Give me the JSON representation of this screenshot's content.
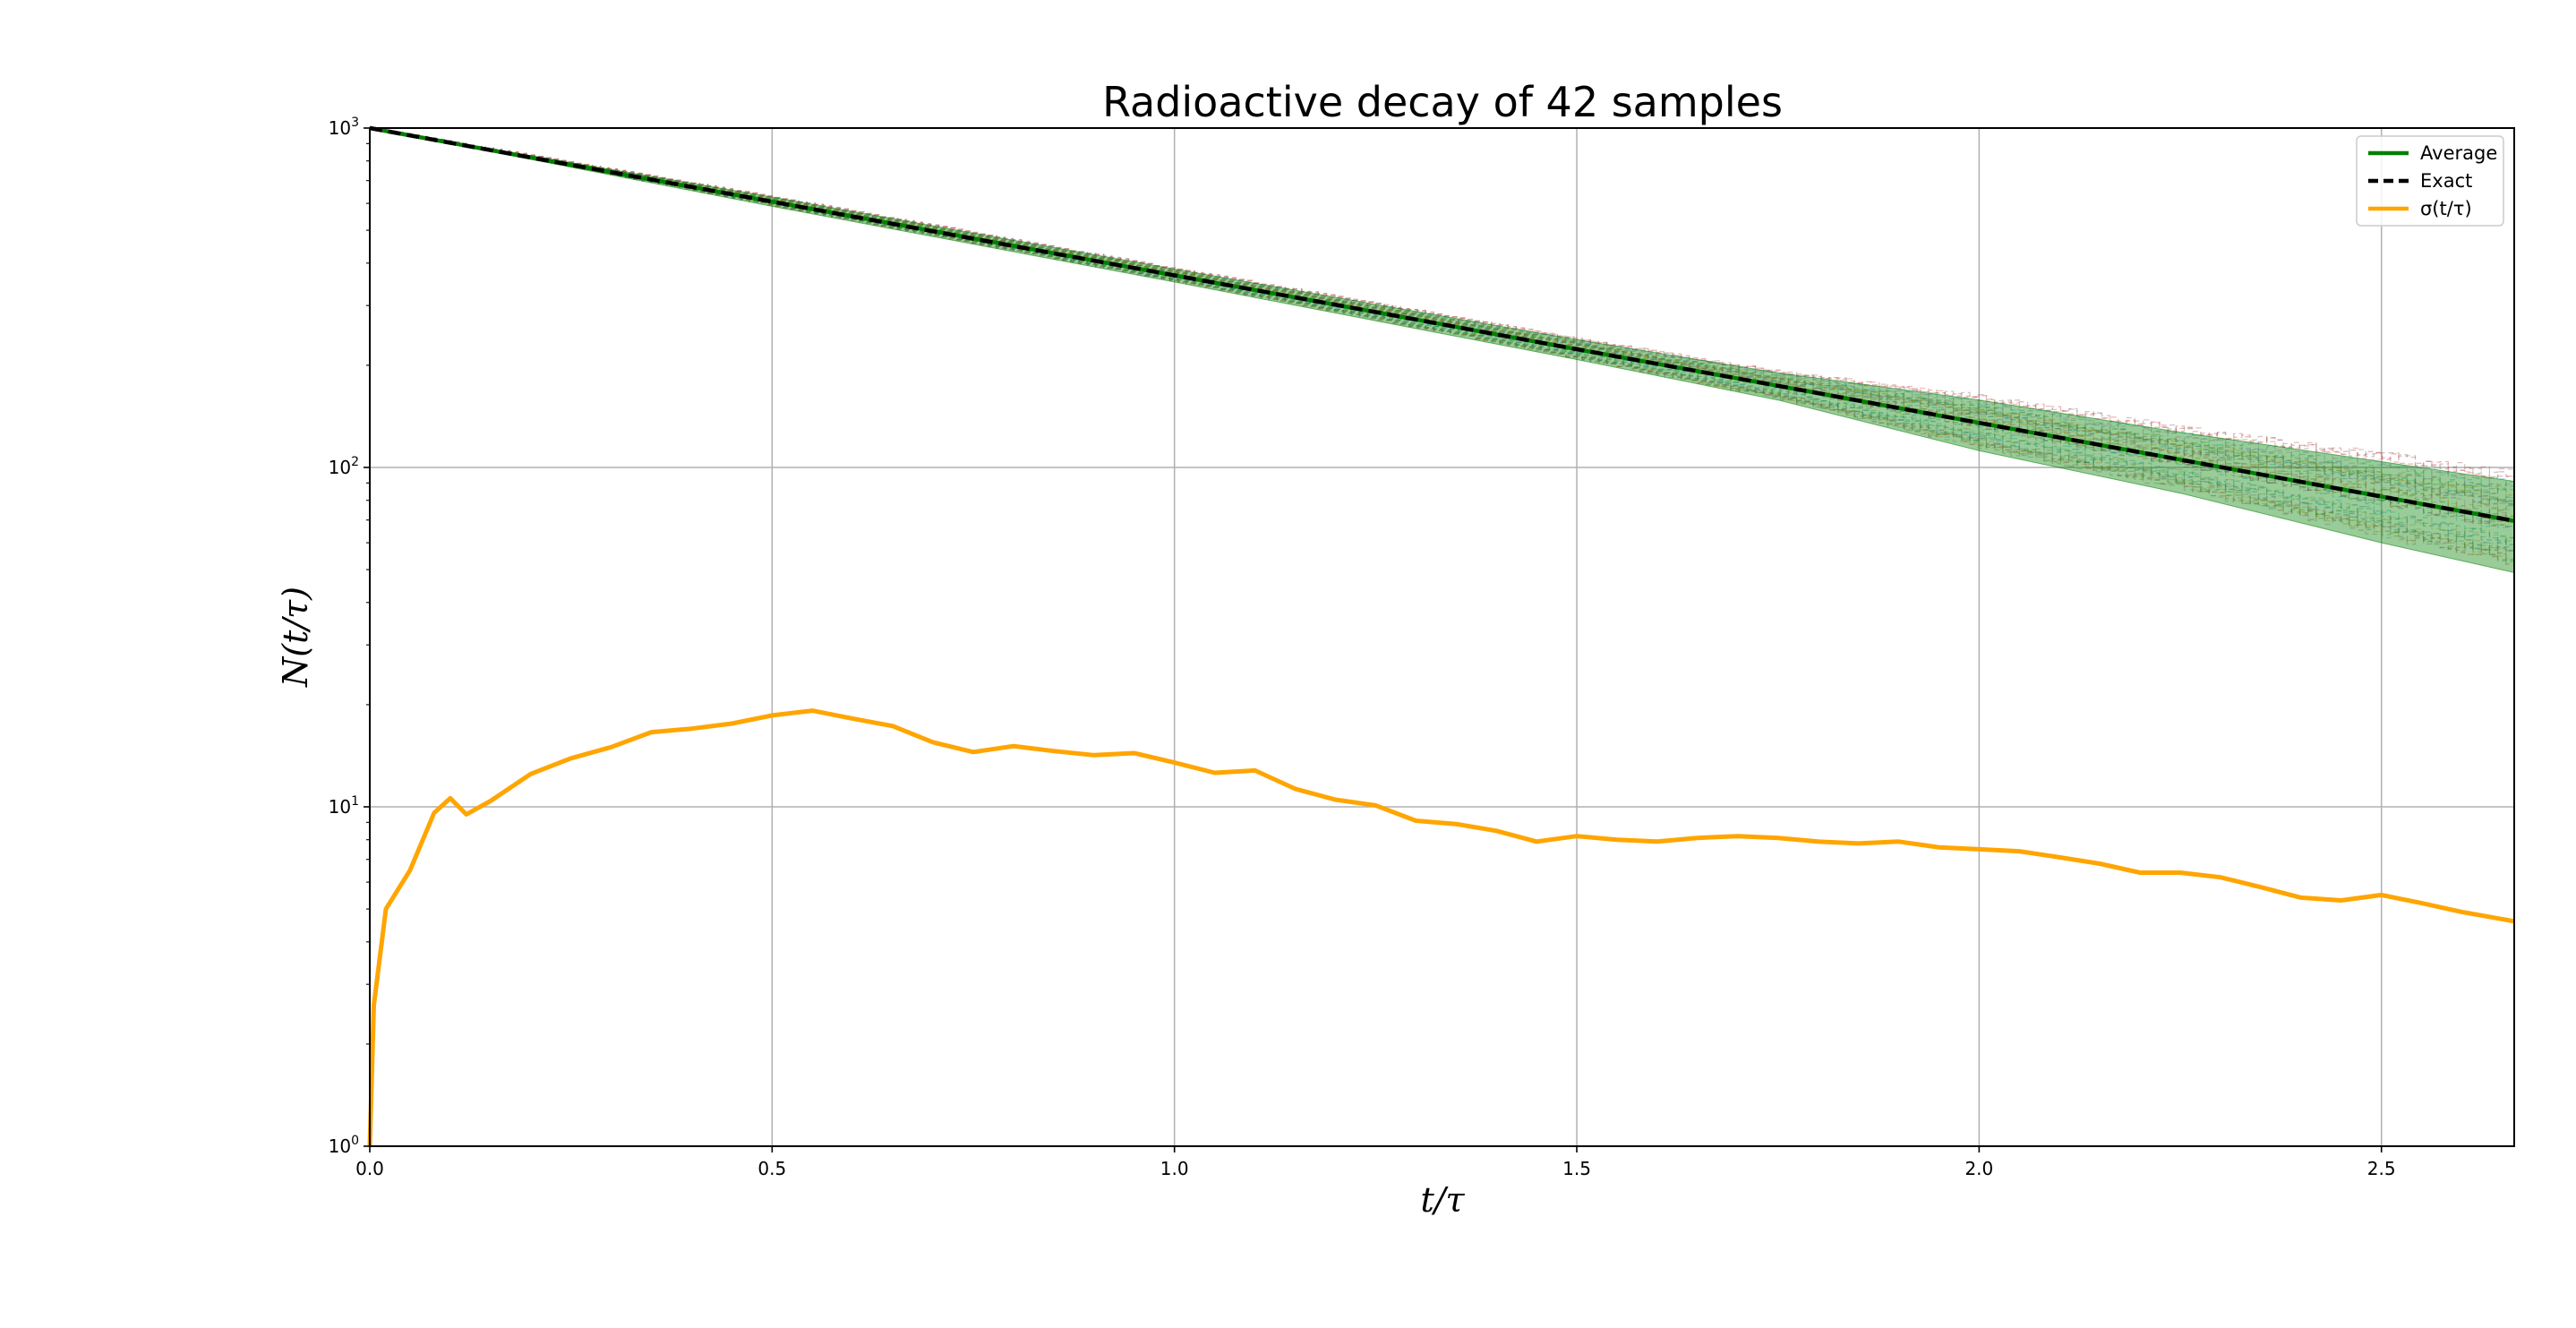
{
  "chart_data": {
    "type": "line",
    "title": "Radioactive decay of 42 samples",
    "xlabel": "t/τ",
    "ylabel": "N(t/τ)",
    "xlim": [
      0,
      2.665
    ],
    "ylim": [
      1,
      1000
    ],
    "yscale": "log",
    "grid": true,
    "legend_position": "top-right",
    "x_ticks": [
      "0.0",
      "0.5",
      "1.0",
      "1.5",
      "2.0",
      "2.5"
    ],
    "x_tick_values": [
      0,
      0.5,
      1.0,
      1.5,
      2.0,
      2.5
    ],
    "y_ticks": [
      {
        "base": "10",
        "exp": "0",
        "value": 1
      },
      {
        "base": "10",
        "exp": "1",
        "value": 10
      },
      {
        "base": "10",
        "exp": "2",
        "value": 100
      },
      {
        "base": "10",
        "exp": "3",
        "value": 1000
      }
    ],
    "sample_count": 42,
    "initial_N": 1000,
    "series": [
      {
        "name": "Average",
        "color": "#008000",
        "style": "solid",
        "x": [
          0,
          0.25,
          0.5,
          0.75,
          1.0,
          1.25,
          1.5,
          1.75,
          2.0,
          2.25,
          2.5,
          2.665
        ],
        "values": [
          1000,
          779,
          607,
          473,
          368,
          287,
          223,
          174,
          135.3,
          105.4,
          82.1,
          69.6
        ]
      },
      {
        "name": "Exact",
        "color": "#000000",
        "style": "dashed",
        "x": [
          0,
          0.25,
          0.5,
          0.75,
          1.0,
          1.25,
          1.5,
          1.75,
          2.0,
          2.25,
          2.5,
          2.665
        ],
        "values": [
          1000,
          779,
          607,
          472,
          368,
          287,
          223,
          174,
          135.3,
          105.4,
          82.1,
          69.6
        ]
      },
      {
        "name": "σ(t/τ)",
        "color": "#ffa500",
        "style": "solid",
        "x": [
          0,
          0.005,
          0.02,
          0.05,
          0.08,
          0.1,
          0.12,
          0.15,
          0.2,
          0.25,
          0.3,
          0.35,
          0.4,
          0.45,
          0.5,
          0.55,
          0.6,
          0.65,
          0.7,
          0.75,
          0.8,
          0.85,
          0.9,
          0.95,
          1.0,
          1.05,
          1.1,
          1.15,
          1.2,
          1.25,
          1.3,
          1.35,
          1.4,
          1.45,
          1.5,
          1.55,
          1.6,
          1.65,
          1.7,
          1.75,
          1.8,
          1.85,
          1.9,
          1.95,
          2.0,
          2.05,
          2.1,
          2.15,
          2.2,
          2.25,
          2.3,
          2.35,
          2.4,
          2.45,
          2.5,
          2.55,
          2.6,
          2.665
        ],
        "values": [
          1,
          2.6,
          5.0,
          6.5,
          9.6,
          10.6,
          9.5,
          10.4,
          12.5,
          13.9,
          15.0,
          16.6,
          17.0,
          17.6,
          18.6,
          19.2,
          18.2,
          17.3,
          15.5,
          14.5,
          15.1,
          14.6,
          14.2,
          14.4,
          13.5,
          12.6,
          12.8,
          11.3,
          10.5,
          10.1,
          9.1,
          8.9,
          8.5,
          7.9,
          8.2,
          8.0,
          7.9,
          8.1,
          8.2,
          8.1,
          7.9,
          7.8,
          7.9,
          7.6,
          7.5,
          7.4,
          7.1,
          6.8,
          6.4,
          6.4,
          6.2,
          5.8,
          5.4,
          5.3,
          5.5,
          5.2,
          4.9,
          4.6
        ]
      }
    ],
    "band": {
      "color": "#008000",
      "x": [
        0,
        0.5,
        1.0,
        1.5,
        1.75,
        2.0,
        2.25,
        2.5,
        2.665
      ],
      "lower": [
        1000,
        588,
        352,
        208,
        158,
        112,
        84,
        60,
        49
      ],
      "upper": [
        1000,
        626,
        384,
        238,
        190,
        158,
        127,
        104,
        91
      ]
    }
  }
}
